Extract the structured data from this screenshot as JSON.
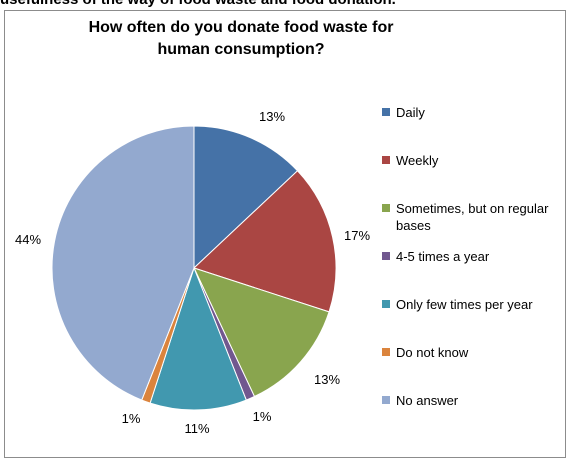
{
  "top_text": "usefulness of the way of food waste and food donation.",
  "chart_data": {
    "type": "pie",
    "title": "How often do you donate food waste for human consumption?",
    "categories": [
      "Daily",
      "Weekly",
      "Sometimes, but on regular bases",
      "4-5 times a year",
      "Only few times per year",
      "Do not know",
      "No answer"
    ],
    "values": [
      13,
      17,
      13,
      1,
      11,
      1,
      44
    ],
    "data_labels": [
      "13%",
      "17%",
      "13%",
      "1%",
      "11%",
      "1%",
      "44%"
    ],
    "colors": [
      "#4572a7",
      "#aa4643",
      "#89a54e",
      "#71588f",
      "#4198af",
      "#db843d",
      "#93a9cf"
    ],
    "legend_position": "right",
    "legend_lines": [
      [
        "Daily"
      ],
      [
        "Weekly"
      ],
      [
        "Sometimes, but on regular",
        "bases"
      ],
      [
        "4-5 times a year"
      ],
      [
        "Only few times per year"
      ],
      [
        "Do not know"
      ],
      [
        "No answer"
      ]
    ]
  }
}
